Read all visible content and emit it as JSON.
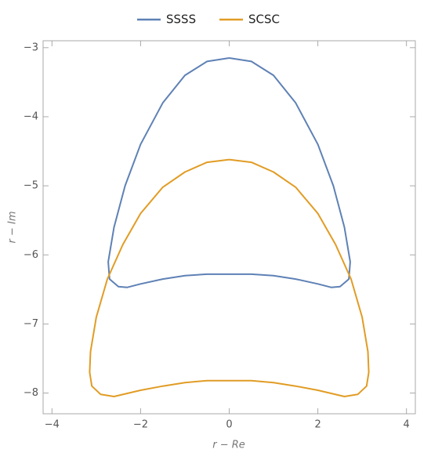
{
  "chart_data": {
    "type": "line",
    "xlabel": "r − Re",
    "ylabel": "r − Im",
    "xlim": [
      -4.2,
      4.2
    ],
    "ylim": [
      -8.3,
      -2.9
    ],
    "xticks": [
      {
        "value": -4,
        "label": "−4"
      },
      {
        "value": -2,
        "label": "−2"
      },
      0,
      2,
      4
    ],
    "yticks": [
      {
        "value": -3,
        "label": "−3"
      },
      {
        "value": -4,
        "label": "−4"
      },
      {
        "value": -5,
        "label": "−5"
      },
      {
        "value": -6,
        "label": "−6"
      },
      {
        "value": -7,
        "label": "−7"
      },
      {
        "value": -8,
        "label": "−8"
      }
    ],
    "series": [
      {
        "name": "SSSS",
        "color": "#5e81b5",
        "x": [
          0,
          0.5,
          1.0,
          1.5,
          2.0,
          2.35,
          2.6,
          2.73,
          2.7,
          2.5,
          2.3,
          2.0,
          1.5,
          1.0,
          0.5,
          0,
          -0.5,
          -1.0,
          -1.5,
          -2.0,
          -2.3,
          -2.5,
          -2.7,
          -2.73,
          -2.6,
          -2.35,
          -2.0,
          -1.5,
          -1.0,
          -0.5,
          0
        ],
        "values": [
          -3.15,
          -3.2,
          -3.4,
          -3.8,
          -4.4,
          -5.0,
          -5.6,
          -6.1,
          -6.35,
          -6.46,
          -6.47,
          -6.42,
          -6.35,
          -6.3,
          -6.28,
          -6.28,
          -6.28,
          -6.3,
          -6.35,
          -6.42,
          -6.47,
          -6.46,
          -6.35,
          -6.1,
          -5.6,
          -5.0,
          -4.4,
          -3.8,
          -3.4,
          -3.2,
          -3.15
        ]
      },
      {
        "name": "SCSC",
        "color": "#e19c24",
        "x": [
          0,
          0.5,
          1.0,
          1.5,
          2.0,
          2.4,
          2.75,
          3.0,
          3.13,
          3.15,
          3.1,
          2.9,
          2.6,
          2.0,
          1.5,
          1.0,
          0.5,
          0,
          -0.5,
          -1.0,
          -1.5,
          -2.0,
          -2.6,
          -2.9,
          -3.1,
          -3.15,
          -3.13,
          -3.0,
          -2.75,
          -2.4,
          -2.0,
          -1.5,
          -1.0,
          -0.5,
          0
        ],
        "values": [
          -4.62,
          -4.66,
          -4.8,
          -5.02,
          -5.4,
          -5.85,
          -6.35,
          -6.9,
          -7.4,
          -7.7,
          -7.9,
          -8.02,
          -8.05,
          -7.96,
          -7.9,
          -7.85,
          -7.82,
          -7.82,
          -7.82,
          -7.85,
          -7.9,
          -7.96,
          -8.05,
          -8.02,
          -7.9,
          -7.7,
          -7.4,
          -6.9,
          -6.35,
          -5.85,
          -5.4,
          -5.02,
          -4.8,
          -4.66,
          -4.62
        ]
      }
    ]
  }
}
